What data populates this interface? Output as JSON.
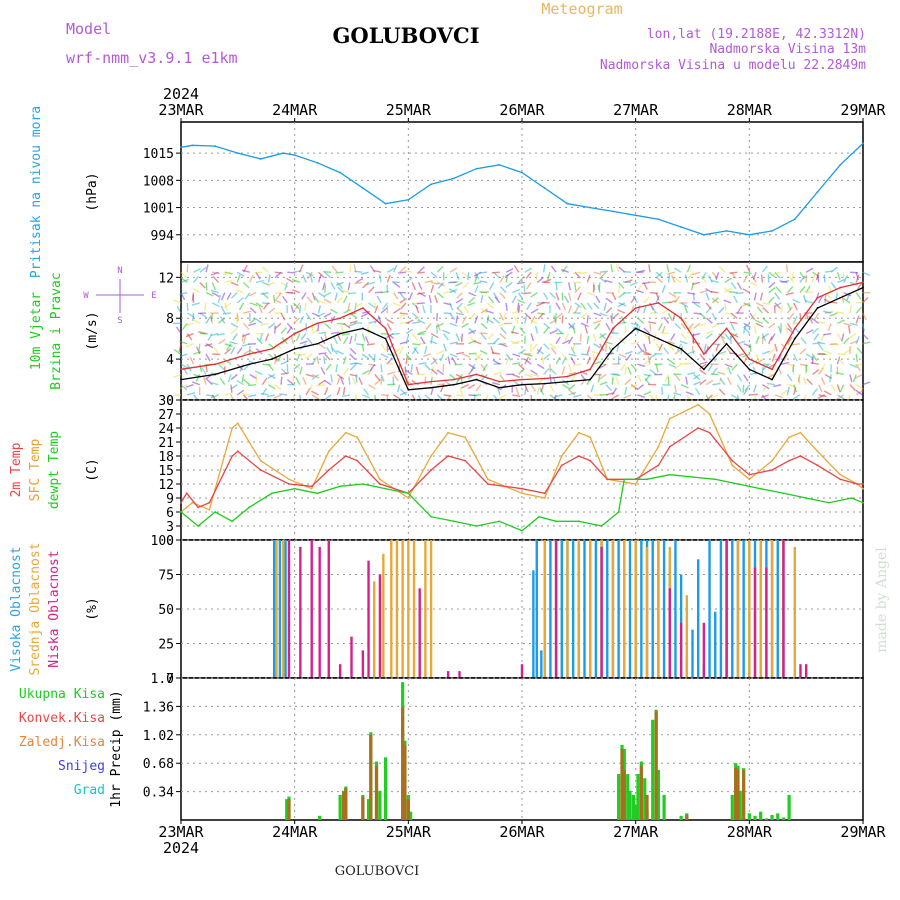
{
  "header": {
    "model_label": "Model",
    "model_name": "wrf-nmm_v3.9.1 e1km",
    "station": "GOLUBOVCI",
    "chart_type": "Meteogram",
    "lonlat": "lon,lat (19.2188E, 42.3312N)",
    "elevation": "Nadmorska Visina 13m",
    "model_elevation": "Nadmorska Visina u modelu 22.2849m",
    "footer_station": "GOLUBOVCI",
    "watermark": "made by Angel",
    "colors": {
      "model": "#b25ad8",
      "chart_type": "#e8b860",
      "station": "#000000"
    }
  },
  "chart_data": [
    {
      "id": "pressure",
      "type": "line",
      "ylabel_left": "Pritisak na nivou mora",
      "ylabel_unit": "(hPa)",
      "ylabel_color": "#29a3e8",
      "ylim": [
        987,
        1023
      ],
      "yticks": [
        994,
        1001,
        1008,
        1015
      ],
      "grid": true,
      "series": [
        {
          "color": "#1c9be6",
          "x": [
            0,
            0.1,
            0.3,
            0.5,
            0.7,
            0.9,
            1.0,
            1.2,
            1.4,
            1.6,
            1.8,
            2.0,
            2.2,
            2.4,
            2.6,
            2.8,
            3.0,
            3.2,
            3.4,
            3.6,
            3.8,
            4.0,
            4.2,
            4.4,
            4.6,
            4.8,
            5.0,
            5.2,
            5.4,
            5.6,
            5.8,
            6.0
          ],
          "y": [
            1016.5,
            1017,
            1016.8,
            1015,
            1013.5,
            1015,
            1014.5,
            1012.5,
            1010,
            1006,
            1002,
            1003,
            1007,
            1008.5,
            1011,
            1012,
            1010,
            1006,
            1002,
            1001,
            1000,
            999,
            998,
            996,
            994,
            995,
            994,
            995,
            998,
            1005,
            1012,
            1017.5
          ]
        }
      ]
    },
    {
      "id": "wind",
      "type": "line",
      "ylabel_left": "10m Vjetar",
      "ylabel_left2": "Brzina i Pravac",
      "ylabel_unit": "(m/s)",
      "ylabel_color": "#1ecc1e",
      "compass": {
        "n": "N",
        "s": "S",
        "e": "E",
        "w": "W"
      },
      "ylim": [
        0,
        13.5
      ],
      "yticks": [
        0,
        4,
        8,
        12
      ],
      "grid": true,
      "series": [
        {
          "color": "#000000",
          "x": [
            0,
            0.3,
            0.6,
            0.8,
            1.0,
            1.2,
            1.4,
            1.6,
            1.8,
            2.0,
            2.2,
            2.4,
            2.6,
            2.8,
            3.0,
            3.2,
            3.4,
            3.6,
            3.8,
            4.0,
            4.2,
            4.4,
            4.6,
            4.8,
            5.0,
            5.2,
            5.4,
            5.6,
            5.8,
            6.0
          ],
          "y": [
            2,
            2.5,
            3.5,
            4,
            5,
            5.5,
            6.5,
            7,
            6,
            1,
            1.2,
            1.5,
            2,
            1.2,
            1.5,
            1.6,
            1.8,
            2,
            5,
            7,
            6,
            5,
            3,
            5.5,
            3,
            2,
            6,
            9,
            10,
            11
          ]
        },
        {
          "color": "#e03030",
          "x": [
            0,
            0.3,
            0.6,
            0.8,
            1.0,
            1.2,
            1.4,
            1.6,
            1.8,
            2.0,
            2.2,
            2.4,
            2.6,
            2.8,
            3.0,
            3.2,
            3.4,
            3.6,
            3.8,
            4.0,
            4.2,
            4.4,
            4.6,
            4.8,
            5.0,
            5.2,
            5.4,
            5.6,
            5.8,
            6.0
          ],
          "y": [
            3,
            3.5,
            4.5,
            5,
            6.5,
            7.5,
            8,
            9,
            7,
            1.5,
            1.8,
            2,
            2.5,
            1.8,
            2,
            2.1,
            2.3,
            3,
            7,
            9,
            9.5,
            8,
            4.5,
            7,
            4,
            3,
            7,
            10,
            11,
            11.5
          ]
        }
      ]
    },
    {
      "id": "temperature",
      "type": "line",
      "ylabel_lines": [
        "2m Temp",
        "SFC Temp",
        "dewpt Temp"
      ],
      "ylabel_colors": [
        "#e84545",
        "#e8a030",
        "#1ecc1e"
      ],
      "ylabel_unit": "(C)",
      "ylim": [
        0,
        30
      ],
      "yticks": [
        0,
        3,
        6,
        9,
        12,
        15,
        18,
        21,
        24,
        27,
        30
      ],
      "grid": true,
      "series": [
        {
          "name": "SFC Temp",
          "color": "#e8a838",
          "x": [
            0,
            0.1,
            0.25,
            0.45,
            0.5,
            0.7,
            0.95,
            1.15,
            1.3,
            1.45,
            1.55,
            1.75,
            2.0,
            2.2,
            2.35,
            2.5,
            2.7,
            3.0,
            3.2,
            3.35,
            3.5,
            3.6,
            3.75,
            4.0,
            4.2,
            4.3,
            4.55,
            4.65,
            4.85,
            5.0,
            5.2,
            5.35,
            5.45,
            5.6,
            5.8,
            5.95,
            6.0
          ],
          "y": [
            6,
            8,
            6.5,
            24,
            25,
            17,
            13,
            11,
            19,
            23,
            22,
            13,
            9,
            18,
            23,
            22,
            13,
            10,
            9,
            18,
            23,
            22,
            13,
            12,
            20,
            26,
            29,
            27,
            16,
            13,
            17,
            22,
            23,
            19,
            14,
            12,
            11
          ]
        },
        {
          "name": "2m Temp",
          "color": "#e84545",
          "x": [
            0,
            0.05,
            0.15,
            0.25,
            0.45,
            0.5,
            0.7,
            0.95,
            1.15,
            1.3,
            1.45,
            1.55,
            1.75,
            2.0,
            2.2,
            2.35,
            2.5,
            2.7,
            3.0,
            3.2,
            3.35,
            3.5,
            3.6,
            3.75,
            4.0,
            4.2,
            4.3,
            4.55,
            4.65,
            4.85,
            5.0,
            5.2,
            5.35,
            5.45,
            5.6,
            5.8,
            5.95,
            6.0
          ],
          "y": [
            8,
            10,
            7,
            8,
            18,
            19,
            15,
            12,
            11.5,
            15,
            18,
            17,
            12,
            10,
            15,
            18,
            17,
            12,
            11,
            10,
            16,
            18,
            17,
            13,
            13,
            16,
            20,
            24,
            23,
            17,
            14,
            15,
            17,
            18,
            16,
            13,
            12,
            12
          ]
        },
        {
          "name": "dewpt Temp",
          "color": "#1ecc1e",
          "x": [
            0,
            0.15,
            0.3,
            0.45,
            0.6,
            0.8,
            1.0,
            1.2,
            1.4,
            1.6,
            1.8,
            2.0,
            2.2,
            2.4,
            2.6,
            2.8,
            3.0,
            3.15,
            3.3,
            3.5,
            3.7,
            3.85,
            3.9,
            4.1,
            4.3,
            4.5,
            4.7,
            4.9,
            5.1,
            5.3,
            5.5,
            5.7,
            5.9,
            6.0
          ],
          "y": [
            6,
            3,
            6,
            4,
            7,
            10,
            11,
            10,
            11.5,
            12,
            11,
            10,
            5,
            4,
            3,
            4,
            2,
            5,
            4,
            4,
            3,
            6,
            13,
            13,
            14,
            13.5,
            13,
            12,
            11,
            10,
            9,
            8,
            9,
            8
          ]
        }
      ]
    },
    {
      "id": "clouds",
      "type": "bar",
      "ylabel_lines": [
        "Visoka Oblacnost",
        "Srednja Oblacnost",
        "Niska Oblacnost"
      ],
      "ylabel_colors": [
        "#29a3e8",
        "#e8a838",
        "#d6208a"
      ],
      "ylabel_unit": "(%)",
      "ylim": [
        0,
        100
      ],
      "yticks": [
        0,
        25,
        50,
        75,
        100
      ],
      "grid": true,
      "series": [
        {
          "name": "Visoka Oblacnost",
          "color": "#1c9be6",
          "x": [
            0.82,
            0.87,
            0.92,
            3.1,
            3.13,
            3.17,
            3.2,
            3.25,
            3.3,
            3.35,
            3.4,
            3.45,
            3.5,
            3.55,
            3.6,
            3.65,
            3.7,
            3.75,
            3.8,
            3.85,
            3.9,
            3.95,
            4.0,
            4.05,
            4.1,
            4.15,
            4.2,
            4.25,
            4.3,
            4.35,
            4.4,
            4.45,
            4.5,
            4.55,
            4.6,
            4.65,
            4.7,
            4.75,
            4.8,
            4.85,
            4.9,
            4.95,
            5.0,
            5.05,
            5.1,
            5.15,
            5.2,
            5.25,
            5.3
          ],
          "y": [
            100,
            100,
            100,
            78,
            100,
            20,
            100,
            100,
            100,
            100,
            100,
            100,
            100,
            100,
            100,
            100,
            100,
            100,
            100,
            100,
            100,
            100,
            100,
            100,
            100,
            100,
            100,
            100,
            80,
            100,
            75,
            15,
            35,
            86,
            10,
            100,
            48,
            100,
            100,
            100,
            100,
            100,
            100,
            100,
            100,
            100,
            100,
            100,
            100
          ]
        },
        {
          "name": "Srednja Oblacnost",
          "color": "#e8a838",
          "x": [
            0.84,
            0.9,
            1.7,
            1.78,
            1.85,
            1.9,
            1.95,
            2.0,
            2.05,
            2.15,
            2.2,
            3.2,
            3.3,
            3.4,
            3.5,
            3.6,
            3.7,
            3.8,
            3.9,
            4.0,
            4.1,
            4.2,
            4.3,
            4.45,
            4.9,
            5.0,
            5.1,
            5.2,
            5.3,
            5.4
          ],
          "y": [
            100,
            100,
            70,
            90,
            100,
            100,
            100,
            100,
            100,
            100,
            100,
            100,
            100,
            100,
            100,
            100,
            100,
            100,
            100,
            100,
            95,
            100,
            95,
            60,
            100,
            100,
            100,
            100,
            100,
            95
          ]
        },
        {
          "name": "Niska Oblacnost",
          "color": "#d6208a",
          "x": [
            0.95,
            1.05,
            1.15,
            1.22,
            1.3,
            1.4,
            1.5,
            1.6,
            1.65,
            1.75,
            2.1,
            2.35,
            2.45,
            3.0,
            3.3,
            3.7,
            4.3,
            4.4,
            4.6,
            4.8,
            5.05,
            5.15,
            5.3,
            5.45,
            5.5
          ],
          "y": [
            100,
            95,
            100,
            95,
            100,
            10,
            30,
            20,
            85,
            75,
            65,
            5,
            5,
            10,
            100,
            95,
            65,
            40,
            40,
            100,
            80,
            80,
            100,
            10,
            10
          ]
        }
      ]
    },
    {
      "id": "precip",
      "type": "bar",
      "ylabel_lines": [
        "Ukupna Kisa",
        "Konvek.Kisa",
        "Zaledj.Kisa",
        "Snijeg",
        "Grad"
      ],
      "ylabel_colors": [
        "#1ecc1e",
        "#e84545",
        "#e8843a",
        "#4040e0",
        "#20c0c0"
      ],
      "ylabel_unit": "1hr Precip (mm)",
      "ylim": [
        0,
        1.7
      ],
      "yticks": [
        0.34,
        0.68,
        1.02,
        1.36,
        1.7
      ],
      "grid": true,
      "series": [
        {
          "name": "Ukupna Kisa",
          "color": "#22cc22",
          "x": [
            0.93,
            0.95,
            1.22,
            1.4,
            1.43,
            1.45,
            1.6,
            1.65,
            1.67,
            1.72,
            1.75,
            1.8,
            1.95,
            1.97,
            2.0,
            2.02,
            3.85,
            3.88,
            3.9,
            3.93,
            3.95,
            3.98,
            4.0,
            4.02,
            4.05,
            4.08,
            4.1,
            4.15,
            4.18,
            4.2,
            4.25,
            4.4,
            4.45,
            4.85,
            4.88,
            4.9,
            4.92,
            4.95,
            5.0,
            5.05,
            5.1,
            5.15,
            5.2,
            5.25,
            5.3,
            5.35
          ],
          "y": [
            0.25,
            0.28,
            0.05,
            0.3,
            0.35,
            0.4,
            0.3,
            0.25,
            1.05,
            0.7,
            0.35,
            0.75,
            1.65,
            0.95,
            0.3,
            0.1,
            0.55,
            0.9,
            0.85,
            0.55,
            0.35,
            0.3,
            0.18,
            0.55,
            0.7,
            0.5,
            0.12,
            1.2,
            1.32,
            0.6,
            0.3,
            0.05,
            0.08,
            0.3,
            0.68,
            0.65,
            0.35,
            0.62,
            0.08,
            0.05,
            0.1,
            0.02,
            0.06,
            0.08,
            0.03,
            0.3
          ]
        },
        {
          "name": "Konvek.Kisa",
          "color": "#a8701e",
          "x": [
            0.95,
            1.43,
            1.45,
            1.6,
            1.67,
            1.72,
            1.95,
            1.97,
            2.0,
            3.88,
            3.9,
            4.05,
            4.1,
            4.18,
            4.45,
            4.88,
            4.9,
            4.95
          ],
          "y": [
            0.25,
            0.33,
            0.38,
            0.28,
            1.02,
            0.65,
            1.35,
            0.9,
            0.25,
            0.85,
            0.6,
            0.65,
            0.3,
            1.3,
            0.06,
            0.62,
            0.6,
            0.6
          ]
        }
      ]
    }
  ],
  "time_axis": {
    "year": "2024",
    "labels": [
      "23MAR",
      "24MAR",
      "25MAR",
      "26MAR",
      "27MAR",
      "28MAR",
      "29MAR"
    ]
  }
}
